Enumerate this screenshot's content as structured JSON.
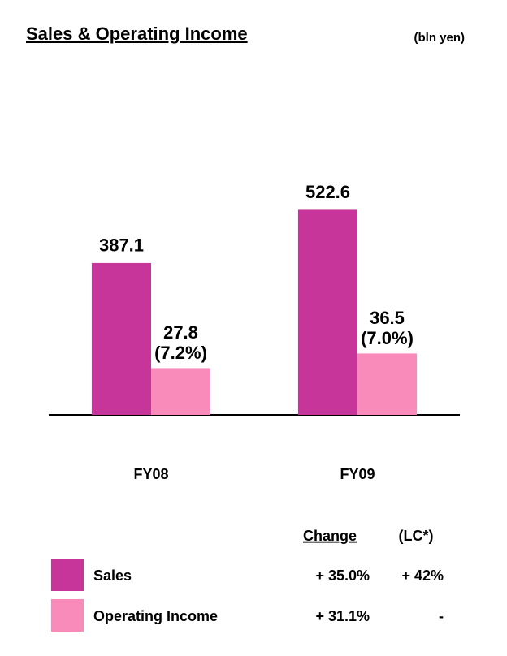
{
  "chart_data": {
    "type": "bar",
    "title": "Sales & Operating Income",
    "subtitle": "(bln yen)",
    "categories": [
      "FY08",
      "FY09"
    ],
    "series": [
      {
        "name": "Sales",
        "color": "#c8359a",
        "values": [
          387.1,
          522.6
        ]
      },
      {
        "name": "Operating Income",
        "color": "#f98bbb",
        "values": [
          27.8,
          36.5
        ],
        "axis": "y2",
        "margin_labels": [
          "(7.2%)",
          "(7.0%)"
        ]
      }
    ],
    "ylim": [
      0,
      600
    ],
    "y2lim": [
      0,
      140
    ],
    "grid": false,
    "change_table": {
      "headers": [
        "Change",
        "(LC*)"
      ],
      "rows": [
        [
          "+ 35.0%",
          "+ 42%"
        ],
        [
          "+ 31.1%",
          "-"
        ]
      ]
    }
  }
}
